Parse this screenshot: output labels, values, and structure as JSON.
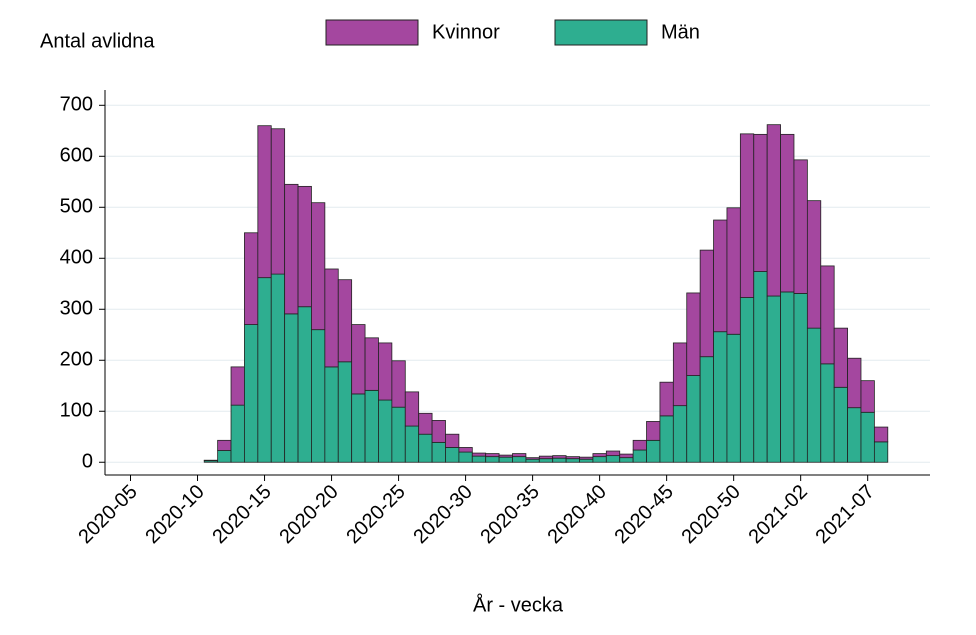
{
  "chart_data": {
    "type": "stacked_bar",
    "y_label": "Antal avlidna",
    "x_label": "År - vecka",
    "categories": [
      null,
      null,
      "2020-05",
      null,
      null,
      null,
      null,
      "2020-10",
      null,
      null,
      null,
      null,
      "2020-15",
      null,
      null,
      null,
      null,
      "2020-20",
      null,
      null,
      null,
      null,
      "2020-25",
      null,
      null,
      null,
      null,
      "2020-30",
      null,
      null,
      null,
      null,
      "2020-35",
      null,
      null,
      null,
      null,
      "2020-40",
      null,
      null,
      null,
      null,
      "2020-45",
      null,
      null,
      null,
      null,
      "2020-50",
      null,
      null,
      null,
      null,
      "2021-02",
      null,
      null,
      null,
      null,
      "2021-07",
      null,
      null,
      null,
      null
    ],
    "series": [
      {
        "name": "Män",
        "color": "#2eae90",
        "values": [
          null,
          null,
          null,
          null,
          null,
          null,
          null,
          null,
          3,
          23,
          112,
          270,
          362,
          369,
          291,
          305,
          260,
          187,
          197,
          134,
          141,
          122,
          108,
          71,
          55,
          39,
          29,
          20,
          12,
          11,
          10,
          11,
          6,
          7,
          8,
          7,
          6,
          11,
          13,
          9,
          24,
          43,
          91,
          111,
          170,
          207,
          256,
          251,
          323,
          374,
          326,
          334,
          331,
          263,
          193,
          147,
          107,
          98,
          40,
          null,
          null,
          null
        ]
      },
      {
        "name": "Kvinnor",
        "color": "#a4479f",
        "values": [
          null,
          null,
          null,
          null,
          null,
          null,
          null,
          null,
          1,
          20,
          75,
          180,
          298,
          285,
          254,
          236,
          249,
          192,
          161,
          136,
          103,
          112,
          91,
          67,
          41,
          43,
          26,
          9,
          6,
          6,
          4,
          6,
          3,
          5,
          5,
          4,
          4,
          6,
          9,
          7,
          19,
          37,
          66,
          123,
          162,
          209,
          219,
          248,
          321,
          269,
          336,
          309,
          262,
          250,
          192,
          116,
          97,
          62,
          29,
          null,
          null,
          null
        ]
      }
    ],
    "ylim": [
      -25,
      730
    ],
    "yticks": [
      0,
      100,
      200,
      300,
      400,
      500,
      600,
      700
    ],
    "grid": true
  }
}
